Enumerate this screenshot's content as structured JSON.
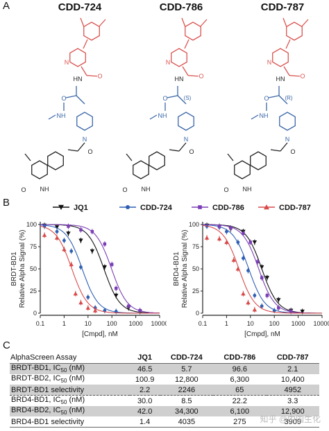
{
  "panel_a": {
    "letter": "A",
    "compounds": [
      "CDD-724",
      "CDD-786",
      "CDD-787"
    ],
    "atom_labels": {
      "N": "N",
      "HN": "HN",
      "O": "O",
      "NH": "NH",
      "S": "(S)",
      "R": "(R)"
    },
    "colors": {
      "top_fragment": "#d9534f",
      "scaffold": "#3a66a8",
      "base": "#222222"
    }
  },
  "panel_b": {
    "letter": "B",
    "legend": [
      {
        "name": "JQ1",
        "color": "#111111",
        "marker": "triangle-down"
      },
      {
        "name": "CDD-724",
        "color": "#2f5fb3",
        "marker": "circle"
      },
      {
        "name": "CDD-786",
        "color": "#7b3fb5",
        "marker": "square"
      },
      {
        "name": "CDD-787",
        "color": "#d84a4a",
        "marker": "triangle-up"
      }
    ]
  },
  "chart_data": [
    {
      "type": "scatter",
      "title": "",
      "ylabel_title": "BRDT-BD1",
      "ylabel": "Relative Alpha Signal (%)",
      "xlabel": "[Cmpd], nM",
      "xscale": "log",
      "xlim": [
        0.1,
        10000
      ],
      "ylim": [
        0,
        100
      ],
      "x_ticks": [
        "0.1",
        "1",
        "10",
        "100",
        "1000",
        "10000"
      ],
      "y_ticks": [
        "0",
        "25",
        "50",
        "75",
        "100"
      ],
      "series": [
        {
          "name": "JQ1",
          "ic50": 46.5,
          "x": [
            0.15,
            0.5,
            1.5,
            5,
            15,
            50,
            150,
            500,
            1500
          ],
          "y": [
            99,
            97,
            90,
            82,
            70,
            52,
            20,
            6,
            2
          ]
        },
        {
          "name": "CDD-724",
          "ic50": 5.7,
          "x": [
            0.15,
            0.5,
            1,
            2,
            5,
            10,
            20,
            50,
            150
          ],
          "y": [
            98,
            92,
            82,
            70,
            52,
            18,
            6,
            3,
            2
          ]
        },
        {
          "name": "CDD-786",
          "ic50": 96.6,
          "x": [
            1.5,
            5,
            15,
            50,
            100,
            150,
            500,
            1500
          ],
          "y": [
            98,
            94,
            92,
            78,
            55,
            28,
            8,
            3
          ]
        },
        {
          "name": "CDD-787",
          "ic50": 2.1,
          "x": [
            0.15,
            0.5,
            1,
            2,
            3,
            5,
            10,
            20
          ],
          "y": [
            88,
            85,
            72,
            55,
            22,
            12,
            6,
            3
          ]
        }
      ]
    },
    {
      "type": "scatter",
      "title": "",
      "ylabel_title": "BRD4-BD1",
      "ylabel": "Relative Alpha Signal (%)",
      "xlabel": "[Cmpd], nM",
      "xscale": "log",
      "xlim": [
        0.1,
        10000
      ],
      "ylim": [
        0,
        100
      ],
      "x_ticks": [
        "0.1",
        "1",
        "10",
        "100",
        "1000",
        "10000"
      ],
      "y_ticks": [
        "0",
        "25",
        "50",
        "75",
        "100"
      ],
      "series": [
        {
          "name": "JQ1",
          "ic50": 30.0,
          "x": [
            0.15,
            0.5,
            1.5,
            5,
            15,
            30,
            50,
            150,
            500,
            1500
          ],
          "y": [
            99,
            98,
            95,
            92,
            80,
            52,
            40,
            15,
            3,
            2
          ]
        },
        {
          "name": "CDD-724",
          "ic50": 8.5,
          "x": [
            0.15,
            0.5,
            1,
            3,
            5,
            8,
            15,
            30,
            100
          ],
          "y": [
            98,
            97,
            92,
            80,
            62,
            48,
            20,
            8,
            3
          ]
        },
        {
          "name": "CDD-786",
          "ic50": 22.2,
          "x": [
            0.5,
            1.5,
            5,
            10,
            20,
            30,
            50,
            150,
            500
          ],
          "y": [
            98,
            96,
            90,
            80,
            58,
            40,
            20,
            6,
            2
          ]
        },
        {
          "name": "CDD-787",
          "ic50": 3.3,
          "x": [
            0.15,
            0.5,
            1,
            2,
            3,
            5,
            8,
            15
          ],
          "y": [
            85,
            84,
            80,
            60,
            50,
            22,
            12,
            4
          ]
        }
      ]
    },
    {
      "type": "table",
      "columns": [
        "AlphaScreen Assay",
        "JQ1",
        "CDD-724",
        "CDD-786",
        "CDD-787"
      ],
      "rows": [
        {
          "label": "BRDT-BD1, IC50 (nM)",
          "values": [
            "46.5",
            "5.7",
            "96.6",
            "2.1"
          ]
        },
        {
          "label": "BRDT-BD2, IC50 (nM)",
          "values": [
            "100.9",
            "12,800",
            "6,300",
            "10,400"
          ]
        },
        {
          "label": "BRDT-BD1 selectivity",
          "values": [
            "2.2",
            "2246",
            "65",
            "4952"
          ]
        },
        {
          "label": "BRD4-BD1, IC50 (nM)",
          "values": [
            "30.0",
            "8.5",
            "22.2",
            "3.3"
          ]
        },
        {
          "label": "BRD4-BD2, IC50 (nM)",
          "values": [
            "42.0",
            "34,300",
            "6,100",
            "12,900"
          ]
        },
        {
          "label": "BRD4-BD1 selectivity",
          "values": [
            "1.4",
            "4035",
            "275",
            "3909"
          ]
        }
      ]
    }
  ],
  "panel_c": {
    "letter": "C",
    "header": [
      "AlphaScreen Assay",
      "JQ1",
      "CDD-724",
      "CDD-786",
      "CDD-787"
    ],
    "rows": [
      {
        "prefix": "BRDT-BD1, IC",
        "sub": "50",
        "suffix": " (nM)",
        "v": [
          "46.5",
          "5.7",
          "96.6",
          "2.1"
        ]
      },
      {
        "prefix": "BRDT-BD2, IC",
        "sub": "50",
        "suffix": " (nM)",
        "v": [
          "100.9",
          "12,800",
          "6,300",
          "10,400"
        ]
      },
      {
        "prefix": "BRDT-BD1 selectivity",
        "sub": "",
        "suffix": "",
        "v": [
          "2.2",
          "2246",
          "65",
          "4952"
        ]
      },
      {
        "prefix": "BRD4-BD1, IC",
        "sub": "50",
        "suffix": " (nM)",
        "v": [
          "30.0",
          "8.5",
          "22.2",
          "3.3"
        ]
      },
      {
        "prefix": "BRD4-BD2, IC",
        "sub": "50",
        "suffix": " (nM)",
        "v": [
          "42.0",
          "34,300",
          "6,100",
          "12,900"
        ]
      },
      {
        "prefix": "BRD4-BD1 selectivity",
        "sub": "",
        "suffix": "",
        "v": [
          "1.4",
          "4035",
          "275",
          "3909"
        ]
      }
    ]
  },
  "watermark": "知乎 @中国生化"
}
